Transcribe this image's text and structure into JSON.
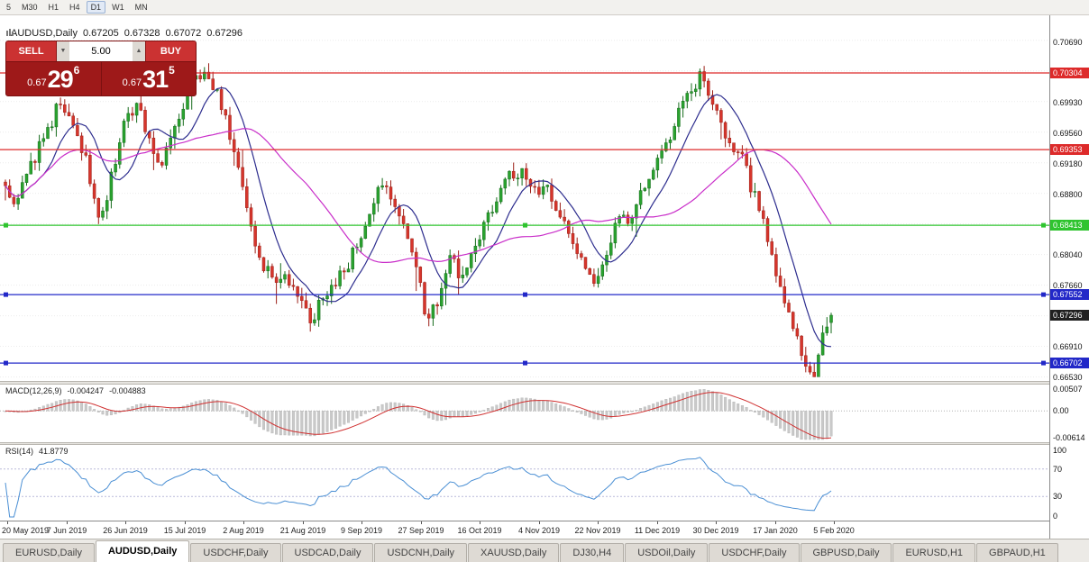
{
  "toolbar": {
    "timeframes": [
      "5",
      "M30",
      "H1",
      "H4",
      "D1",
      "W1",
      "MN"
    ],
    "active": "D1"
  },
  "icons": {
    "volume_up": "▲",
    "volume_down": "▼"
  },
  "chart_header": {
    "symbol": "AUDUSD,Daily",
    "open": "0.67205",
    "high": "0.67328",
    "low": "0.67072",
    "close": "0.67296"
  },
  "trade_panel": {
    "sell_label": "SELL",
    "buy_label": "BUY",
    "volume": "5.00",
    "sell_price_prefix": "0.67",
    "sell_price_big": "29",
    "sell_price_sup": "6",
    "buy_price_prefix": "0.67",
    "buy_price_big": "31",
    "buy_price_sup": "5"
  },
  "chart_data": {
    "type": "candlestick",
    "symbol": "AUDUSD",
    "timeframe": "Daily",
    "price_axis": {
      "max": 0.7102,
      "min": 0.6648,
      "grid_base": 0.6653,
      "grid_step": 0.0038,
      "grid_labels": [
        {
          "text": "0.70690",
          "value": 0.7069
        },
        {
          "text": "0.69930",
          "value": 0.6993
        },
        {
          "text": "0.69560",
          "value": 0.6956
        },
        {
          "text": "0.69180",
          "value": 0.6918
        },
        {
          "text": "0.68800",
          "value": 0.688
        },
        {
          "text": "0.68040",
          "value": 0.6804
        },
        {
          "text": "0.67660",
          "value": 0.6766
        },
        {
          "text": "0.66910",
          "value": 0.6691
        },
        {
          "text": "0.66530",
          "value": 0.6653
        }
      ]
    },
    "levels": [
      {
        "value": 0.70304,
        "label": "0.70304",
        "color": "#dd2a2a",
        "handles": false
      },
      {
        "value": 0.69353,
        "label": "0.69353",
        "color": "#dd2a2a",
        "handles": false
      },
      {
        "value": 0.68413,
        "label": "0.68413",
        "color": "#2fc42f",
        "handles": true
      },
      {
        "value": 0.67552,
        "label": "0.67552",
        "color": "#2228c8",
        "handles": true
      },
      {
        "value": 0.66702,
        "label": "0.66702",
        "color": "#2228c8",
        "handles": true
      }
    ],
    "current_price": {
      "value": 0.67296,
      "label": "0.67296",
      "bg": "#202020"
    },
    "candles": {
      "count": 196,
      "seed": 11,
      "bull_color": "#2aa32f",
      "bear_color": "#d6352c",
      "anchors": [
        [
          0,
          0.6895
        ],
        [
          0.012,
          0.6868
        ],
        [
          0.03,
          0.6915
        ],
        [
          0.05,
          0.6958
        ],
        [
          0.068,
          0.6997
        ],
        [
          0.082,
          0.696
        ],
        [
          0.098,
          0.6925
        ],
        [
          0.112,
          0.6848
        ],
        [
          0.125,
          0.6885
        ],
        [
          0.143,
          0.6968
        ],
        [
          0.158,
          0.6992
        ],
        [
          0.172,
          0.6955
        ],
        [
          0.188,
          0.6918
        ],
        [
          0.205,
          0.6958
        ],
        [
          0.225,
          0.7015
        ],
        [
          0.245,
          0.703
        ],
        [
          0.262,
          0.6988
        ],
        [
          0.278,
          0.693
        ],
        [
          0.295,
          0.684
        ],
        [
          0.312,
          0.679
        ],
        [
          0.33,
          0.6778
        ],
        [
          0.348,
          0.6768
        ],
        [
          0.36,
          0.6745
        ],
        [
          0.372,
          0.6712
        ],
        [
          0.383,
          0.6758
        ],
        [
          0.4,
          0.6768
        ],
        [
          0.418,
          0.68
        ],
        [
          0.435,
          0.6845
        ],
        [
          0.452,
          0.6882
        ],
        [
          0.465,
          0.6885
        ],
        [
          0.48,
          0.6842
        ],
        [
          0.497,
          0.6795
        ],
        [
          0.51,
          0.6718
        ],
        [
          0.523,
          0.6745
        ],
        [
          0.54,
          0.68
        ],
        [
          0.555,
          0.6772
        ],
        [
          0.572,
          0.6822
        ],
        [
          0.59,
          0.6862
        ],
        [
          0.608,
          0.6898
        ],
        [
          0.625,
          0.6908
        ],
        [
          0.64,
          0.688
        ],
        [
          0.655,
          0.6895
        ],
        [
          0.67,
          0.6858
        ],
        [
          0.685,
          0.6815
        ],
        [
          0.7,
          0.6788
        ],
        [
          0.715,
          0.6772
        ],
        [
          0.728,
          0.6808
        ],
        [
          0.742,
          0.6855
        ],
        [
          0.755,
          0.684
        ],
        [
          0.768,
          0.6878
        ],
        [
          0.782,
          0.6902
        ],
        [
          0.798,
          0.694
        ],
        [
          0.812,
          0.6972
        ],
        [
          0.83,
          0.7005
        ],
        [
          0.845,
          0.703
        ],
        [
          0.858,
          0.699
        ],
        [
          0.87,
          0.6958
        ],
        [
          0.882,
          0.6925
        ],
        [
          0.892,
          0.6935
        ],
        [
          0.903,
          0.6888
        ],
        [
          0.915,
          0.6855
        ],
        [
          0.928,
          0.68
        ],
        [
          0.944,
          0.674
        ],
        [
          0.958,
          0.67
        ],
        [
          0.97,
          0.6668
        ],
        [
          0.98,
          0.666
        ],
        [
          0.988,
          0.67
        ],
        [
          1,
          0.673
        ]
      ],
      "last": {
        "o": 0.67205,
        "h": 0.67328,
        "l": 0.67072,
        "c": 0.67296
      }
    },
    "moving_averages": [
      {
        "period": 10,
        "color": "#2d2d8e"
      },
      {
        "period": 34,
        "color": "#c92ec9"
      }
    ],
    "macd": {
      "label": "MACD(12,26,9)",
      "value_main": "-0.004247",
      "value_signal": "-0.004883",
      "fast": 12,
      "slow": 26,
      "signal_period": 9,
      "hist_color": "#c9c9c9",
      "signal_color": "#d03030",
      "axis": {
        "max": 0.00507,
        "min": -0.00614
      },
      "axis_labels": [
        {
          "text": "0.00507",
          "value": 0.00507
        },
        {
          "text": "0.00",
          "value": 0
        },
        {
          "text": "-0.00614",
          "value": -0.00614
        }
      ]
    },
    "rsi": {
      "label": "RSI(14)",
      "value": "41.8779",
      "period": 14,
      "color": "#4a8fd4",
      "guide_levels": [
        70,
        30
      ],
      "axis_labels": [
        {
          "text": "100",
          "value": 100
        },
        {
          "text": "70",
          "value": 70
        },
        {
          "text": "30",
          "value": 30
        },
        {
          "text": "0",
          "value": 0
        }
      ]
    },
    "time_axis": {
      "labels": [
        "20 May 2019",
        "7 Jun 2019",
        "26 Jun 2019",
        "15 Jul 2019",
        "2 Aug 2019",
        "21 Aug 2019",
        "9 Sep 2019",
        "27 Sep 2019",
        "16 Oct 2019",
        "4 Nov 2019",
        "22 Nov 2019",
        "11 Dec 2019",
        "30 Dec 2019",
        "17 Jan 2020",
        "5 Feb 2020"
      ]
    }
  },
  "tabs": {
    "active_index": 1,
    "items": [
      "EURUSD,Daily",
      "AUDUSD,Daily",
      "USDCHF,Daily",
      "USDCAD,Daily",
      "USDCNH,Daily",
      "XAUUSD,Daily",
      "DJ30,H4",
      "USDOil,Daily",
      "USDCHF,Daily",
      "GBPUSD,Daily",
      "EURUSD,H1",
      "GBPAUD,H1"
    ]
  }
}
